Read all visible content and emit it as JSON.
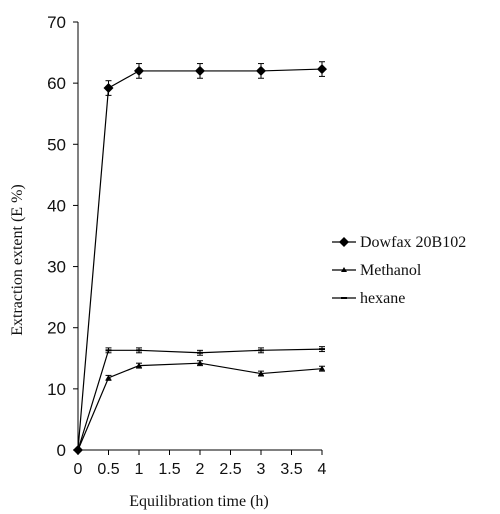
{
  "chart_data": {
    "type": "line",
    "title": "",
    "xlabel": "Equilibration time (h)",
    "ylabel": "Extraction extent (E %)",
    "xlim": [
      0,
      4
    ],
    "ylim": [
      0,
      70
    ],
    "x": [
      0,
      0.5,
      1,
      2,
      3,
      4
    ],
    "x_ticks": [
      "0",
      "0.5",
      "1",
      "1.5",
      "2",
      "2.5",
      "3",
      "3.5",
      "4"
    ],
    "y_ticks": [
      "0",
      "10",
      "20",
      "30",
      "40",
      "50",
      "60",
      "70"
    ],
    "grid": false,
    "legend_position": "right",
    "series": [
      {
        "name": "Dowfax 20B102",
        "marker": "diamond",
        "color": "#000000",
        "values": [
          0,
          59.2,
          62.0,
          62.0,
          62.0,
          62.3
        ],
        "error": [
          0,
          1.2,
          1.2,
          1.2,
          1.2,
          1.2
        ]
      },
      {
        "name": "Methanol",
        "marker": "triangle",
        "color": "#000000",
        "values": [
          0,
          11.8,
          13.8,
          14.2,
          12.5,
          13.3
        ],
        "error": [
          0,
          0.4,
          0.4,
          0.4,
          0.4,
          0.4
        ]
      },
      {
        "name": "hexane",
        "marker": "dash",
        "color": "#000000",
        "values": [
          0,
          16.3,
          16.3,
          15.9,
          16.3,
          16.5
        ],
        "error": [
          0,
          0.4,
          0.4,
          0.4,
          0.4,
          0.4
        ]
      }
    ]
  }
}
